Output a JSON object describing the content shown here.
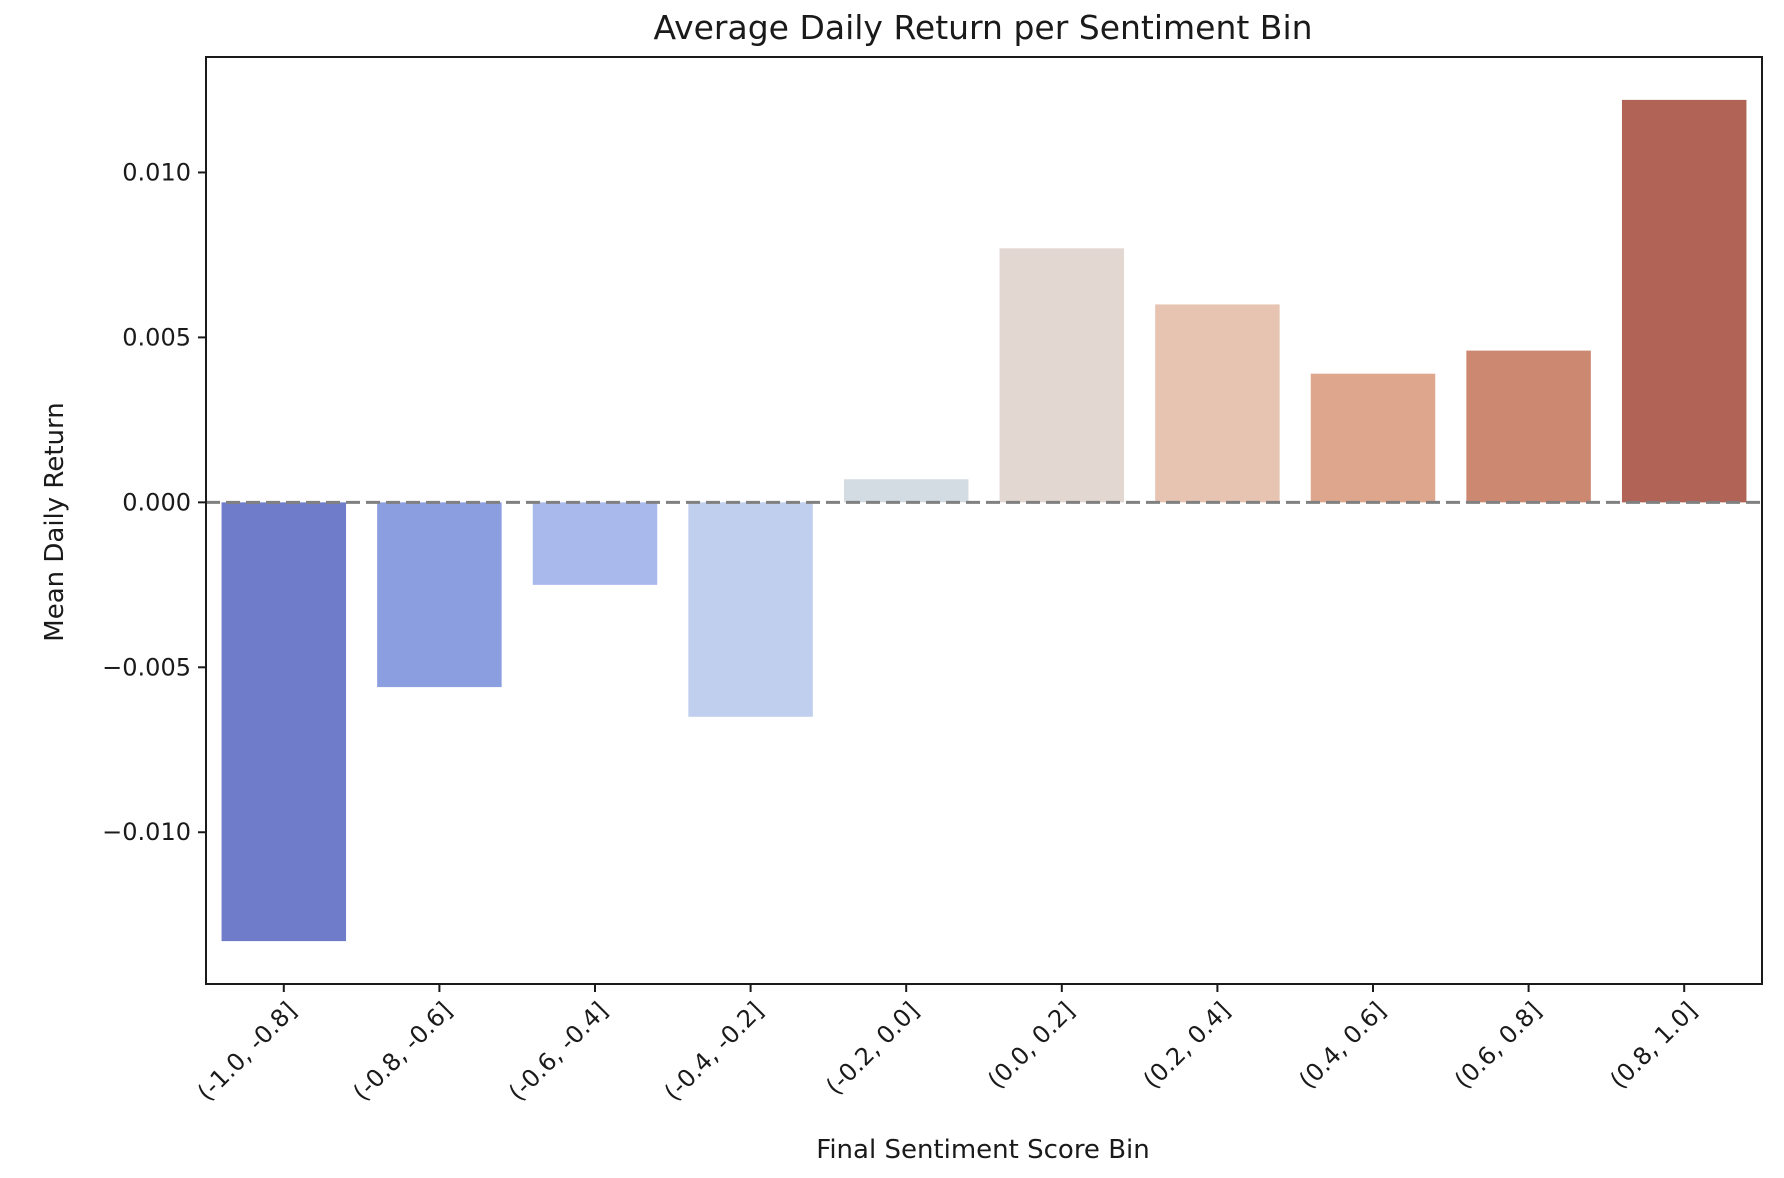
{
  "chart_data": {
    "type": "bar",
    "title": "Average Daily Return per Sentiment Bin",
    "xlabel": "Final Sentiment Score Bin",
    "ylabel": "Mean Daily Return",
    "categories": [
      "(-1.0, -0.8]",
      "(-0.8, -0.6]",
      "(-0.6, -0.4]",
      "(-0.4, -0.2]",
      "(-0.2, 0.0]",
      "(0.0, 0.2]",
      "(0.2, 0.4]",
      "(0.4, 0.6]",
      "(0.6, 0.8]",
      "(0.8, 1.0]"
    ],
    "values": [
      -0.0133,
      -0.0056,
      -0.0025,
      -0.0065,
      0.0007,
      0.0077,
      0.006,
      0.0039,
      0.0046,
      0.0122
    ],
    "ylim": [
      -0.0146,
      0.0135
    ],
    "yticks": [
      -0.01,
      -0.005,
      0.0,
      0.005,
      0.01
    ],
    "ytick_labels": [
      "−0.010",
      "−0.005",
      "0.000",
      "0.005",
      "0.010"
    ],
    "bar_colors": [
      "#6f7cc9",
      "#8b9fe0",
      "#a9b9ec",
      "#c0cfee",
      "#d3dbe3",
      "#e3d7d1",
      "#e7c4b2",
      "#dea78d",
      "#cd8872",
      "#b16355"
    ],
    "reference_line": {
      "value": 0.0,
      "style": "dashed",
      "color": "#808080"
    },
    "grid": false,
    "legend": "none"
  }
}
